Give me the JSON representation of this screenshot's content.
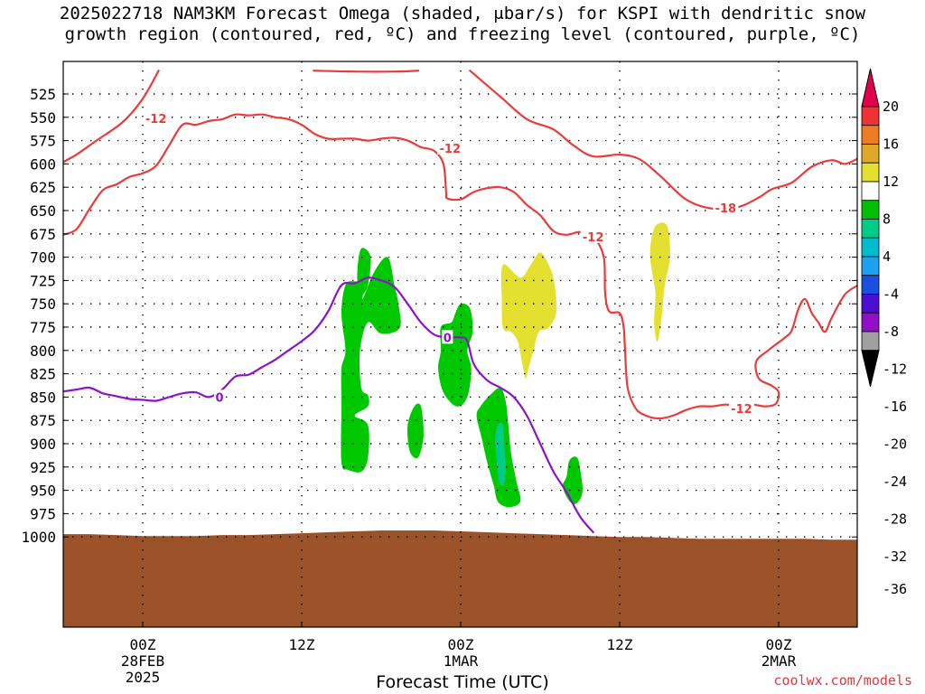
{
  "chart_data": {
    "type": "time-height cross section",
    "title_line1": "2025022718 NAM3KM Forecast Omega (shaded, μbar/s) for KSPI with dendritic snow",
    "title_line2": "growth region (contoured, red, ºC) and freezing level (contoured, purple, ºC)",
    "xlabel": "Forecast Time (UTC)",
    "x_unit": "hours since 2025-02-27 18Z",
    "xlim": [
      0,
      60
    ],
    "x_ticks": [
      {
        "x": 6,
        "label": "00Z",
        "sub1": "28FEB",
        "sub2": "2025"
      },
      {
        "x": 18,
        "label": "12Z",
        "sub1": "",
        "sub2": ""
      },
      {
        "x": 30,
        "label": "00Z",
        "sub1": "1MAR",
        "sub2": ""
      },
      {
        "x": 42,
        "label": "12Z",
        "sub1": "",
        "sub2": ""
      },
      {
        "x": 54,
        "label": "00Z",
        "sub1": "2MAR",
        "sub2": ""
      }
    ],
    "ylabel": "",
    "y_unit": "hPa",
    "ylim": [
      500,
      1005
    ],
    "y_ticks": [
      "525",
      "550",
      "575",
      "600",
      "625",
      "650",
      "675",
      "700",
      "725",
      "750",
      "775",
      "800",
      "825",
      "850",
      "875",
      "900",
      "925",
      "950",
      "975",
      "1000"
    ],
    "grid": true,
    "colorbar": {
      "labels": [
        "20",
        "16",
        "12",
        "8",
        "4",
        "-4",
        "-8",
        "-12",
        "-16",
        "-20",
        "-24",
        "-28",
        "-32",
        "-36"
      ],
      "colors": [
        "#e0004e",
        "#ee3333",
        "#ee7c22",
        "#e0a828",
        "#e4e030",
        "#ffffff",
        "#00c000",
        "#00cc88",
        "#00bbcc",
        "#1ea0f0",
        "#1a4fe0",
        "#4a0fd0",
        "#9010c8",
        "#a0a0a0",
        "#000000"
      ]
    },
    "colors": {
      "dgz": "#e83c3c",
      "freezing": "#8c14c8",
      "terrain": "#9b5228"
    },
    "contour_labels": [
      {
        "text": "-12",
        "x": 7.0,
        "p": 551,
        "series": "dgz"
      },
      {
        "text": "-12",
        "x": 29.2,
        "p": 583,
        "series": "dgz"
      },
      {
        "text": "-18",
        "x": 50.0,
        "p": 647,
        "series": "dgz"
      },
      {
        "text": "-12",
        "x": 40.0,
        "p": 678,
        "series": "dgz"
      },
      {
        "text": "-12",
        "x": 51.2,
        "p": 862,
        "series": "dgz"
      },
      {
        "text": "0",
        "x": 11.8,
        "p": 850,
        "series": "freezing"
      },
      {
        "text": "0",
        "x": 29.0,
        "p": 786,
        "series": "freezing"
      }
    ],
    "series": [
      {
        "kind": "dgz",
        "points": [
          [
            7.2,
            500
          ],
          [
            6,
            530
          ],
          [
            4.5,
            555
          ],
          [
            2.5,
            575
          ],
          [
            1,
            590
          ],
          [
            0,
            598
          ]
        ]
      },
      {
        "kind": "dgz",
        "points": [
          [
            18.9,
            500
          ],
          [
            22,
            501
          ],
          [
            25,
            501
          ],
          [
            26.8,
            500
          ]
        ]
      },
      {
        "kind": "dgz",
        "points": [
          [
            30.7,
            500
          ],
          [
            33,
            528
          ],
          [
            35,
            552
          ],
          [
            37,
            563
          ],
          [
            38.5,
            580
          ],
          [
            40,
            592
          ],
          [
            42,
            590
          ],
          [
            43.5,
            595
          ],
          [
            45,
            612
          ],
          [
            47,
            638
          ],
          [
            49,
            648
          ],
          [
            51,
            646
          ],
          [
            52.5,
            636
          ],
          [
            53.5,
            627
          ],
          [
            55,
            620
          ],
          [
            56.5,
            603
          ],
          [
            58,
            596
          ],
          [
            59,
            600
          ],
          [
            60,
            594
          ]
        ]
      },
      {
        "kind": "dgz",
        "points": [
          [
            0,
            676
          ],
          [
            1,
            670
          ],
          [
            2,
            648
          ],
          [
            3,
            628
          ],
          [
            4,
            622
          ],
          [
            5,
            614
          ],
          [
            6,
            610
          ],
          [
            7,
            602
          ],
          [
            8,
            580
          ],
          [
            9,
            558
          ],
          [
            10,
            558
          ],
          [
            11,
            554
          ],
          [
            12,
            552
          ],
          [
            13,
            547
          ],
          [
            14,
            548
          ],
          [
            15,
            547
          ],
          [
            16,
            550
          ],
          [
            17,
            552
          ],
          [
            18,
            558
          ],
          [
            19,
            568
          ],
          [
            20,
            573
          ],
          [
            21,
            573
          ],
          [
            22,
            573
          ],
          [
            23,
            575
          ],
          [
            24,
            573
          ],
          [
            25,
            572
          ],
          [
            26,
            575
          ],
          [
            27,
            582
          ],
          [
            28,
            586
          ],
          [
            28.7,
            600
          ],
          [
            28.9,
            630
          ],
          [
            29,
            637
          ],
          [
            30,
            638
          ],
          [
            31,
            630
          ],
          [
            32,
            626
          ],
          [
            33,
            625
          ],
          [
            34,
            630
          ],
          [
            35,
            644
          ],
          [
            36,
            655
          ],
          [
            37,
            672
          ],
          [
            38,
            676
          ],
          [
            39,
            673
          ],
          [
            40,
            678
          ],
          [
            40.8,
            700
          ],
          [
            40.9,
            738
          ],
          [
            41.2,
            758
          ],
          [
            42,
            760
          ],
          [
            42.3,
            775
          ],
          [
            42.4,
            798
          ],
          [
            42.6,
            840
          ],
          [
            43.2,
            862
          ],
          [
            44,
            870
          ],
          [
            45,
            873
          ],
          [
            46,
            870
          ],
          [
            47,
            864
          ],
          [
            48,
            860
          ],
          [
            49,
            860
          ],
          [
            50,
            858
          ],
          [
            51,
            860
          ],
          [
            52,
            858
          ],
          [
            53,
            860
          ],
          [
            53.8,
            857
          ],
          [
            54,
            845
          ],
          [
            53.5,
            838
          ],
          [
            52.5,
            830
          ],
          [
            52.3,
            812
          ],
          [
            53.2,
            800
          ],
          [
            54.5,
            786
          ],
          [
            55,
            778
          ],
          [
            55.5,
            755
          ],
          [
            56,
            745
          ],
          [
            56.5,
            760
          ],
          [
            57,
            770
          ],
          [
            57.5,
            780
          ],
          [
            58,
            765
          ],
          [
            59,
            740
          ],
          [
            60,
            730
          ]
        ]
      },
      {
        "kind": "freezing",
        "points": [
          [
            0,
            844
          ],
          [
            1,
            842
          ],
          [
            2,
            840
          ],
          [
            3,
            846
          ],
          [
            4,
            849
          ],
          [
            5,
            852
          ],
          [
            6,
            853
          ],
          [
            7,
            854
          ],
          [
            8,
            850
          ],
          [
            9,
            846
          ],
          [
            10,
            845
          ],
          [
            11,
            850
          ],
          [
            12,
            842
          ],
          [
            13,
            828
          ],
          [
            14,
            826
          ],
          [
            15,
            818
          ],
          [
            16,
            810
          ],
          [
            17,
            800
          ],
          [
            18,
            790
          ],
          [
            19,
            778
          ],
          [
            20,
            758
          ],
          [
            21,
            730
          ],
          [
            22,
            728
          ],
          [
            23,
            722
          ],
          [
            24,
            725
          ],
          [
            25,
            732
          ],
          [
            26,
            750
          ],
          [
            27,
            770
          ],
          [
            28,
            783
          ],
          [
            29,
            786
          ],
          [
            30,
            786
          ],
          [
            30.5,
            790
          ],
          [
            31,
            815
          ],
          [
            32,
            832
          ],
          [
            33,
            840
          ],
          [
            34,
            850
          ],
          [
            35,
            870
          ],
          [
            36,
            900
          ],
          [
            37,
            930
          ],
          [
            38,
            952
          ],
          [
            39,
            978
          ],
          [
            40,
            995
          ]
        ]
      }
    ],
    "terrain_surface": [
      [
        0,
        997
      ],
      [
        2,
        997
      ],
      [
        4,
        998
      ],
      [
        6,
        999
      ],
      [
        8,
        999
      ],
      [
        10,
        999
      ],
      [
        12,
        998
      ],
      [
        14,
        998
      ],
      [
        16,
        997
      ],
      [
        18,
        996
      ],
      [
        20,
        995
      ],
      [
        22,
        994
      ],
      [
        24,
        993
      ],
      [
        26,
        993
      ],
      [
        28,
        993
      ],
      [
        30,
        994
      ],
      [
        32,
        995
      ],
      [
        34,
        996
      ],
      [
        36,
        997
      ],
      [
        38,
        998
      ],
      [
        40,
        999
      ],
      [
        42,
        1000
      ],
      [
        44,
        1000
      ],
      [
        46,
        1001
      ],
      [
        48,
        1002
      ],
      [
        50,
        1002
      ],
      [
        52,
        1002
      ],
      [
        54,
        1002
      ],
      [
        56,
        1002
      ],
      [
        58,
        1003
      ],
      [
        60,
        1003
      ]
    ],
    "omega_regions": [
      {
        "value": -6,
        "points": [
          [
            21.3,
            730
          ],
          [
            22,
            726
          ],
          [
            22.7,
            730
          ],
          [
            22.6,
            745
          ],
          [
            23.5,
            715
          ],
          [
            24.5,
            700
          ],
          [
            25,
            730
          ],
          [
            25.3,
            750
          ],
          [
            25.4,
            776
          ],
          [
            24,
            782
          ],
          [
            23,
            770
          ],
          [
            22.4,
            800
          ],
          [
            22.5,
            840
          ],
          [
            23,
            848
          ],
          [
            23,
            860
          ],
          [
            22,
            870
          ],
          [
            23,
            880
          ],
          [
            23,
            915
          ],
          [
            22.5,
            930
          ],
          [
            21.5,
            928
          ],
          [
            21,
            920
          ],
          [
            21,
            860
          ],
          [
            21,
            820
          ],
          [
            21.3,
            800
          ],
          [
            21,
            760
          ]
        ]
      },
      {
        "value": -6,
        "points": [
          [
            22.3,
            700
          ],
          [
            22.6,
            690
          ],
          [
            23.2,
            700
          ],
          [
            23,
            730
          ],
          [
            22.5,
            740
          ],
          [
            22.2,
            725
          ]
        ]
      },
      {
        "value": -6,
        "points": [
          [
            30,
            750
          ],
          [
            30.7,
            755
          ],
          [
            30.9,
            780
          ],
          [
            30.5,
            800
          ],
          [
            30.8,
            820
          ],
          [
            30.5,
            850
          ],
          [
            29.7,
            860
          ],
          [
            28.7,
            845
          ],
          [
            28.3,
            820
          ],
          [
            28.5,
            800
          ],
          [
            28.5,
            775
          ],
          [
            29.3,
            770
          ],
          [
            29.6,
            760
          ]
        ]
      },
      {
        "value": -6,
        "points": [
          [
            26.5,
            860
          ],
          [
            27,
            860
          ],
          [
            27.2,
            890
          ],
          [
            26.9,
            912
          ],
          [
            26.5,
            915
          ],
          [
            26.1,
            905
          ],
          [
            26,
            880
          ]
        ]
      },
      {
        "value": -6,
        "points": [
          [
            31.5,
            860
          ],
          [
            32.2,
            848
          ],
          [
            33,
            840
          ],
          [
            33.4,
            855
          ],
          [
            33.6,
            880
          ],
          [
            33.8,
            910
          ],
          [
            34.2,
            940
          ],
          [
            34.5,
            962
          ],
          [
            33.6,
            968
          ],
          [
            32.8,
            962
          ],
          [
            32.5,
            945
          ],
          [
            32,
            920
          ],
          [
            31.6,
            895
          ],
          [
            31.2,
            870
          ]
        ]
      },
      {
        "value": -10,
        "points": [
          [
            32.8,
            880
          ],
          [
            33.2,
            880
          ],
          [
            33.3,
            905
          ],
          [
            33.4,
            930
          ],
          [
            33.2,
            945
          ],
          [
            32.9,
            940
          ],
          [
            32.7,
            915
          ],
          [
            32.6,
            895
          ]
        ]
      },
      {
        "value": -6,
        "points": [
          [
            38.2,
            918
          ],
          [
            38.8,
            915
          ],
          [
            39.1,
            935
          ],
          [
            39.2,
            950
          ],
          [
            39.0,
            960
          ],
          [
            38.5,
            965
          ],
          [
            38,
            957
          ],
          [
            37.7,
            945
          ],
          [
            38,
            935
          ]
        ]
      },
      {
        "value": 6,
        "points": [
          [
            33.2,
            708
          ],
          [
            34.5,
            722
          ],
          [
            35.3,
            708
          ],
          [
            36,
            695
          ],
          [
            36.7,
            710
          ],
          [
            37.1,
            730
          ],
          [
            37.2,
            760
          ],
          [
            36.6,
            776
          ],
          [
            35.9,
            780
          ],
          [
            35.5,
            800
          ],
          [
            35.1,
            820
          ],
          [
            34.9,
            830
          ],
          [
            34.6,
            810
          ],
          [
            34.3,
            790
          ],
          [
            33.8,
            780
          ],
          [
            33.2,
            776
          ],
          [
            33.1,
            745
          ]
        ]
      },
      {
        "value": 6,
        "points": [
          [
            44.8,
            665
          ],
          [
            45.6,
            667
          ],
          [
            45.8,
            700
          ],
          [
            45.4,
            730
          ],
          [
            45.2,
            760
          ],
          [
            45,
            782
          ],
          [
            44.8,
            790
          ],
          [
            44.6,
            770
          ],
          [
            44.7,
            740
          ],
          [
            44.5,
            720
          ],
          [
            44.3,
            700
          ],
          [
            44.4,
            680
          ]
        ]
      }
    ]
  }
}
